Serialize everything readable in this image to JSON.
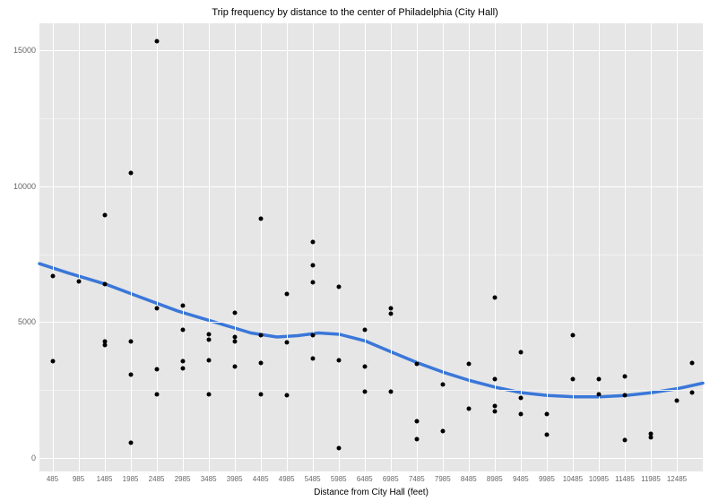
{
  "chart": {
    "type": "scatter",
    "title": "Trip frequency by distance to the center of Philadelphia (City Hall)",
    "xlabel": "Distance from City Hall (feet)",
    "title_fontsize": 11,
    "xlabel_fontsize": 10,
    "tick_fontsize": 9,
    "background_color": "#ffffff",
    "panel_color": "#e6e6e6",
    "grid_major_color": "#ffffff",
    "grid_minor_color": "#f2f2f2",
    "point_color": "#000000",
    "point_size": 5,
    "smooth_color": "#3a77d8",
    "smooth_width": 3.5,
    "xlim": [
      235,
      12985
    ],
    "ylim": [
      -500,
      16000
    ],
    "x_ticks": [
      485,
      985,
      1485,
      1985,
      2485,
      2985,
      3485,
      3985,
      4485,
      4985,
      5485,
      5985,
      6485,
      6985,
      7485,
      7985,
      8485,
      8985,
      9485,
      9985,
      10485,
      10985,
      11485,
      11985,
      12485
    ],
    "x_tick_labels": [
      "485",
      "985",
      "1485",
      "1985",
      "2485",
      "2985",
      "3485",
      "3985",
      "4485",
      "4985",
      "5485",
      "5985",
      "6485",
      "6985",
      "7485",
      "7985",
      "8485",
      "8985",
      "9485",
      "9985",
      "10485",
      "10985",
      "11485",
      "11985",
      "12485"
    ],
    "y_ticks": [
      0,
      5000,
      10000,
      15000
    ],
    "y_tick_labels": [
      "0",
      "5000",
      "10000",
      "15000"
    ],
    "y_minor": [
      2500,
      7500,
      12500
    ],
    "points": [
      [
        485,
        6700
      ],
      [
        485,
        3550
      ],
      [
        985,
        6500
      ],
      [
        1485,
        6400
      ],
      [
        1485,
        8950
      ],
      [
        1485,
        4300
      ],
      [
        1485,
        4150
      ],
      [
        1985,
        10500
      ],
      [
        1985,
        4300
      ],
      [
        1985,
        3050
      ],
      [
        1985,
        560
      ],
      [
        2485,
        15350
      ],
      [
        2485,
        5500
      ],
      [
        2485,
        3250
      ],
      [
        2485,
        2350
      ],
      [
        2985,
        5600
      ],
      [
        2985,
        4700
      ],
      [
        2985,
        3550
      ],
      [
        2985,
        3300
      ],
      [
        3485,
        4550
      ],
      [
        3485,
        4350
      ],
      [
        3485,
        3600
      ],
      [
        3485,
        2350
      ],
      [
        3985,
        5350
      ],
      [
        3985,
        4450
      ],
      [
        3985,
        4300
      ],
      [
        3985,
        3350
      ],
      [
        4485,
        8800
      ],
      [
        4485,
        4500
      ],
      [
        4485,
        3500
      ],
      [
        4485,
        2350
      ],
      [
        4985,
        6050
      ],
      [
        4985,
        4250
      ],
      [
        4985,
        2300
      ],
      [
        5485,
        7950
      ],
      [
        5485,
        7100
      ],
      [
        5485,
        6450
      ],
      [
        5485,
        4500
      ],
      [
        5485,
        3650
      ],
      [
        5985,
        6300
      ],
      [
        5985,
        3600
      ],
      [
        5985,
        350
      ],
      [
        6485,
        4700
      ],
      [
        6485,
        3350
      ],
      [
        6485,
        2450
      ],
      [
        6985,
        5300
      ],
      [
        6985,
        5500
      ],
      [
        6985,
        2450
      ],
      [
        7485,
        3450
      ],
      [
        7485,
        1350
      ],
      [
        7485,
        700
      ],
      [
        7985,
        2700
      ],
      [
        7985,
        1000
      ],
      [
        8485,
        3450
      ],
      [
        8485,
        1800
      ],
      [
        8985,
        5900
      ],
      [
        8985,
        2900
      ],
      [
        8985,
        1900
      ],
      [
        8985,
        1700
      ],
      [
        9485,
        1600
      ],
      [
        9485,
        3900
      ],
      [
        9485,
        2200
      ],
      [
        9985,
        1600
      ],
      [
        9985,
        850
      ],
      [
        10485,
        4500
      ],
      [
        10485,
        2900
      ],
      [
        10985,
        2900
      ],
      [
        10985,
        2350
      ],
      [
        11485,
        3000
      ],
      [
        11485,
        2300
      ],
      [
        11485,
        650
      ],
      [
        11985,
        750
      ],
      [
        11985,
        900
      ],
      [
        12485,
        2100
      ],
      [
        12785,
        3500
      ],
      [
        12785,
        2400
      ]
    ],
    "smooth": [
      [
        235,
        7150
      ],
      [
        800,
        6800
      ],
      [
        1500,
        6400
      ],
      [
        2200,
        5900
      ],
      [
        2900,
        5400
      ],
      [
        3600,
        5000
      ],
      [
        4300,
        4600
      ],
      [
        4800,
        4450
      ],
      [
        5200,
        4500
      ],
      [
        5600,
        4600
      ],
      [
        6000,
        4550
      ],
      [
        6500,
        4300
      ],
      [
        7000,
        3900
      ],
      [
        7500,
        3500
      ],
      [
        8000,
        3150
      ],
      [
        8500,
        2850
      ],
      [
        9000,
        2600
      ],
      [
        9500,
        2400
      ],
      [
        10000,
        2300
      ],
      [
        10500,
        2250
      ],
      [
        11000,
        2250
      ],
      [
        11500,
        2300
      ],
      [
        12000,
        2400
      ],
      [
        12500,
        2550
      ],
      [
        12985,
        2750
      ]
    ]
  }
}
